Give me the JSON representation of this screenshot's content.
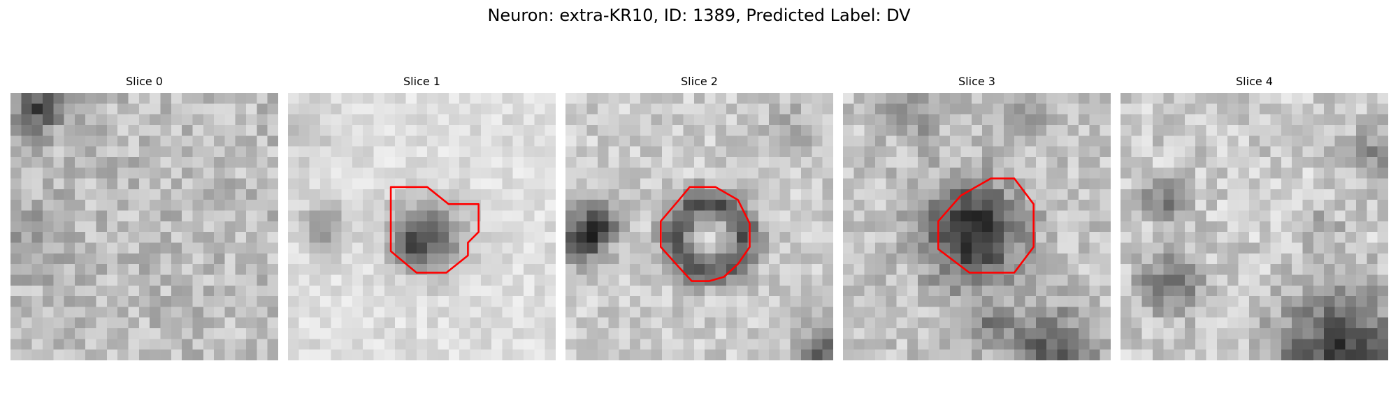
{
  "figure": {
    "title": "Neuron: extra-KR10, ID: 1389, Predicted Label: DV",
    "colormap": "grayscale",
    "roi_color": "#ff0000",
    "panels": [
      {
        "title": "Slice 0",
        "has_roi": false
      },
      {
        "title": "Slice 1",
        "has_roi": true
      },
      {
        "title": "Slice 2",
        "has_roi": true
      },
      {
        "title": "Slice 3",
        "has_roi": true
      },
      {
        "title": "Slice 4",
        "has_roi": false
      }
    ]
  }
}
